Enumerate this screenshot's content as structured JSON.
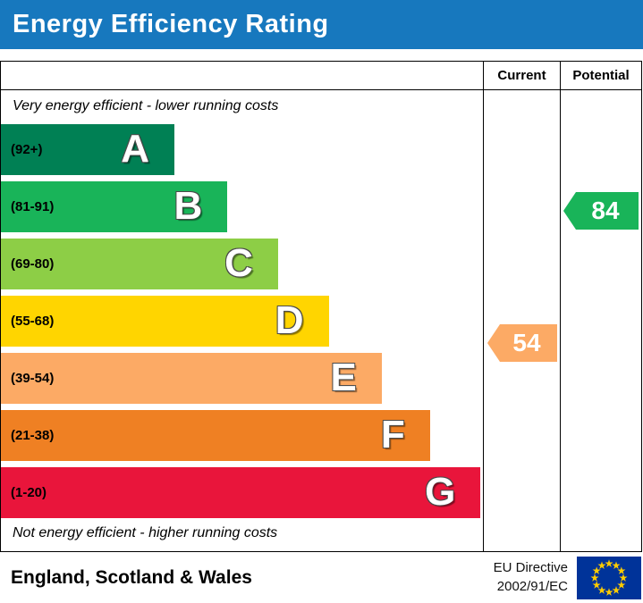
{
  "title": "Energy Efficiency Rating",
  "banner_color": "#1778be",
  "columns": {
    "current": "Current",
    "potential": "Potential"
  },
  "notes": {
    "top": "Very energy efficient - lower running costs",
    "bottom": "Not energy efficient - higher running costs"
  },
  "chart_data": {
    "type": "bar",
    "title": "Energy Efficiency Rating",
    "bands": [
      {
        "letter": "A",
        "range": "(92+)",
        "min": 92,
        "max": 100,
        "color": "#008054",
        "width_pct": 36
      },
      {
        "letter": "B",
        "range": "(81-91)",
        "min": 81,
        "max": 91,
        "color": "#19b459",
        "width_pct": 47
      },
      {
        "letter": "C",
        "range": "(69-80)",
        "min": 69,
        "max": 80,
        "color": "#8dce46",
        "width_pct": 57.5
      },
      {
        "letter": "D",
        "range": "(55-68)",
        "min": 55,
        "max": 68,
        "color": "#ffd500",
        "width_pct": 68
      },
      {
        "letter": "E",
        "range": "(39-54)",
        "min": 39,
        "max": 54,
        "color": "#fcaa65",
        "width_pct": 79
      },
      {
        "letter": "F",
        "range": "(21-38)",
        "min": 21,
        "max": 38,
        "color": "#ef8023",
        "width_pct": 89
      },
      {
        "letter": "G",
        "range": "(1-20)",
        "min": 1,
        "max": 20,
        "color": "#e9153b",
        "width_pct": 99.5
      }
    ],
    "current": {
      "label": "Current",
      "value": 54,
      "band": "E",
      "color": "#fcaa65"
    },
    "potential": {
      "label": "Potential",
      "value": 84,
      "band": "B",
      "color": "#19b459"
    }
  },
  "footer": {
    "region": "England, Scotland & Wales",
    "directive_line1": "EU Directive",
    "directive_line2": "2002/91/EC",
    "flag": {
      "name": "eu-flag",
      "field_color": "#003399",
      "star_color": "#ffcc00"
    }
  }
}
